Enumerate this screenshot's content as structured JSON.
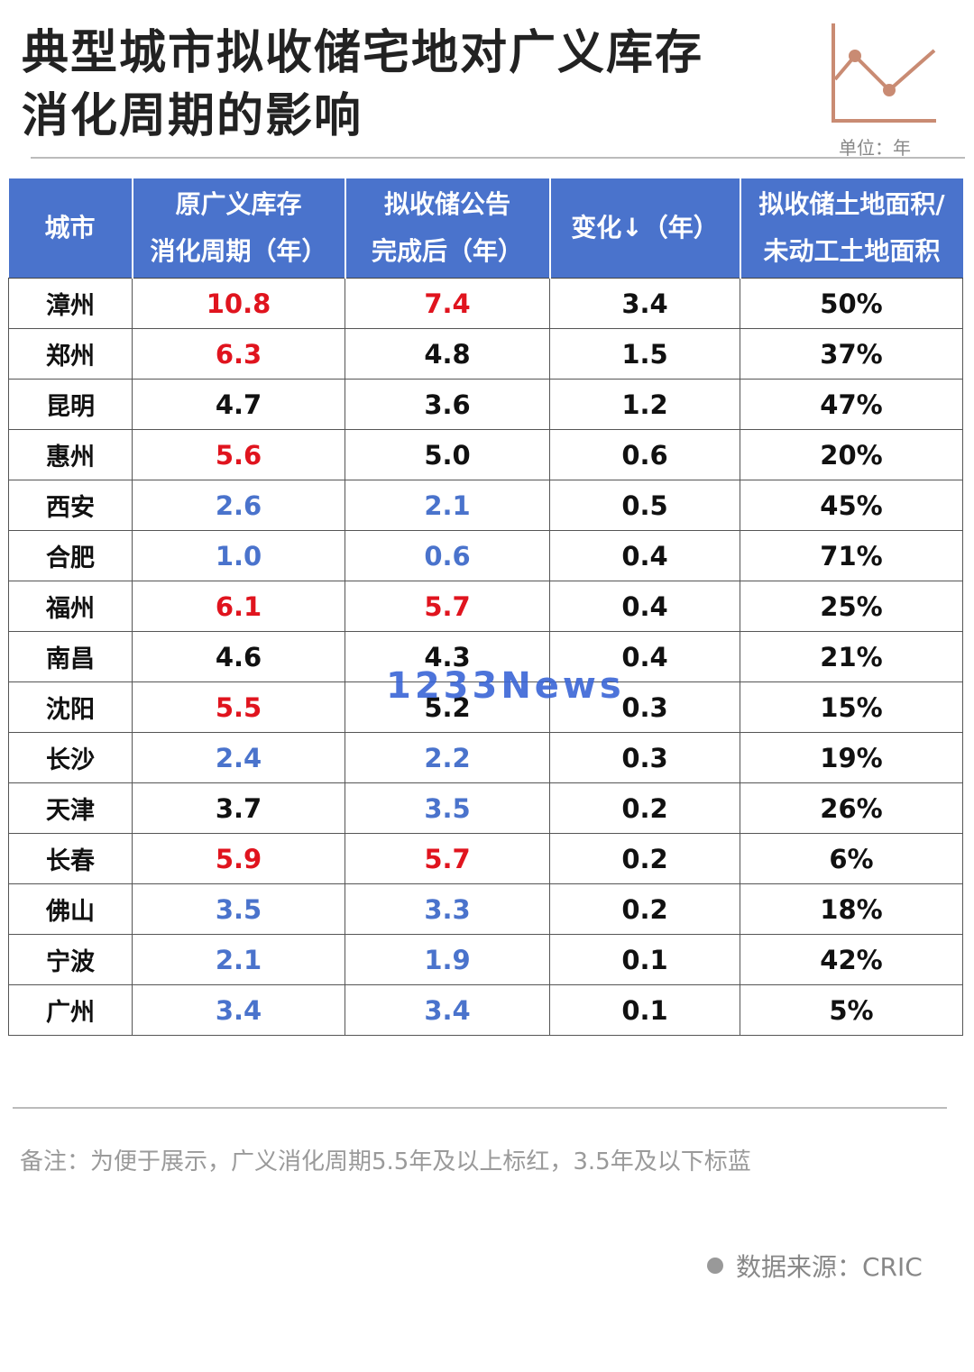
{
  "title_line1": "典型城市拟收储宅地对广义库存",
  "title_line2": "消化周期的影响",
  "unit": "单位：年",
  "watermark": "1233News",
  "note": "备注：为便于展示，广义消化周期5.5年及以上标红，3.5年及以下标蓝",
  "source": "数据来源：CRIC",
  "colors": {
    "header_bg": "#4a73cc",
    "red": "#e0141e",
    "blue": "#4a73cc",
    "logo": "#c98b73"
  },
  "chart_data": {
    "type": "table",
    "columns": [
      {
        "lines": [
          "城市"
        ]
      },
      {
        "lines": [
          "原广义库存",
          "消化周期（年）"
        ]
      },
      {
        "lines": [
          "拟收储公告",
          "完成后（年）"
        ]
      },
      {
        "lines": [
          "变化↓（年）"
        ]
      },
      {
        "lines": [
          "拟收储土地面积/",
          "未动工土地面积"
        ]
      }
    ],
    "rows": [
      {
        "city": "漳州",
        "original": "10.8",
        "original_color": "red",
        "after": "7.4",
        "after_color": "red",
        "change": "3.4",
        "ratio": "50%"
      },
      {
        "city": "郑州",
        "original": "6.3",
        "original_color": "red",
        "after": "4.8",
        "after_color": "black",
        "change": "1.5",
        "ratio": "37%"
      },
      {
        "city": "昆明",
        "original": "4.7",
        "original_color": "black",
        "after": "3.6",
        "after_color": "black",
        "change": "1.2",
        "ratio": "47%"
      },
      {
        "city": "惠州",
        "original": "5.6",
        "original_color": "red",
        "after": "5.0",
        "after_color": "black",
        "change": "0.6",
        "ratio": "20%"
      },
      {
        "city": "西安",
        "original": "2.6",
        "original_color": "blue",
        "after": "2.1",
        "after_color": "blue",
        "change": "0.5",
        "ratio": "45%"
      },
      {
        "city": "合肥",
        "original": "1.0",
        "original_color": "blue",
        "after": "0.6",
        "after_color": "blue",
        "change": "0.4",
        "ratio": "71%"
      },
      {
        "city": "福州",
        "original": "6.1",
        "original_color": "red",
        "after": "5.7",
        "after_color": "red",
        "change": "0.4",
        "ratio": "25%"
      },
      {
        "city": "南昌",
        "original": "4.6",
        "original_color": "black",
        "after": "4.3",
        "after_color": "black",
        "change": "0.4",
        "ratio": "21%"
      },
      {
        "city": "沈阳",
        "original": "5.5",
        "original_color": "red",
        "after": "5.2",
        "after_color": "black",
        "change": "0.3",
        "ratio": "15%"
      },
      {
        "city": "长沙",
        "original": "2.4",
        "original_color": "blue",
        "after": "2.2",
        "after_color": "blue",
        "change": "0.3",
        "ratio": "19%"
      },
      {
        "city": "天津",
        "original": "3.7",
        "original_color": "black",
        "after": "3.5",
        "after_color": "blue",
        "change": "0.2",
        "ratio": "26%"
      },
      {
        "city": "长春",
        "original": "5.9",
        "original_color": "red",
        "after": "5.7",
        "after_color": "red",
        "change": "0.2",
        "ratio": "6%"
      },
      {
        "city": "佛山",
        "original": "3.5",
        "original_color": "blue",
        "after": "3.3",
        "after_color": "blue",
        "change": "0.2",
        "ratio": "18%"
      },
      {
        "city": "宁波",
        "original": "2.1",
        "original_color": "blue",
        "after": "1.9",
        "after_color": "blue",
        "change": "0.1",
        "ratio": "42%"
      },
      {
        "city": "广州",
        "original": "3.4",
        "original_color": "blue",
        "after": "3.4",
        "after_color": "blue",
        "change": "0.1",
        "ratio": "5%"
      }
    ]
  }
}
